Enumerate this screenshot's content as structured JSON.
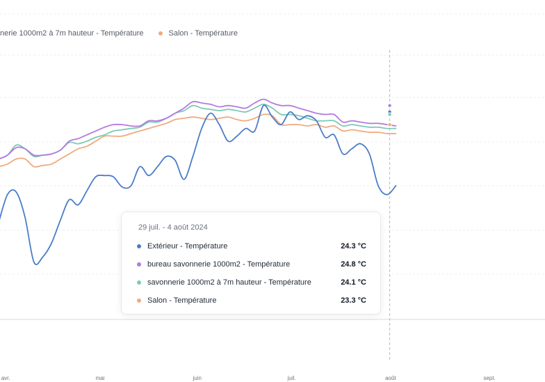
{
  "chart_data": {
    "type": "line",
    "title": "",
    "xlabel": "",
    "ylabel": "",
    "x_tick_labels": [
      "avr.",
      "mai",
      "juin",
      "juil.",
      "août",
      "sept."
    ],
    "ylim": [
      8,
      32
    ],
    "legend": [
      "nerie 1000m2 à 7m hauteur - Température",
      "Salon - Température"
    ],
    "hover_category": "29 juil. - 4 août 2024",
    "series": [
      {
        "name": "Extérieur - Température",
        "color": "#4a7cc9",
        "values": [
          15.6,
          17.8,
          18.0,
          16.0,
          12.5,
          12.9,
          14.0,
          15.8,
          17.4,
          17.0,
          18.1,
          19.2,
          19.3,
          19.2,
          18.4,
          18.5,
          20.0,
          19.3,
          20.0,
          20.8,
          20.5,
          19.0,
          20.8,
          23.0,
          24.2,
          23.3,
          22.0,
          22.4,
          23.0,
          22.8,
          24.8,
          23.9,
          23.3,
          24.3,
          23.7,
          24.0,
          23.6,
          22.3,
          22.5,
          21.0,
          21.4,
          21.8,
          21.0,
          18.5,
          17.8,
          18.5
        ]
      },
      {
        "name": "bureau savonnerie 1000m2 - Température",
        "color": "#b47ae0",
        "values": [
          20.6,
          20.9,
          21.5,
          21.4,
          20.9,
          20.9,
          21.0,
          21.3,
          22.0,
          22.2,
          22.5,
          22.8,
          23.1,
          23.3,
          23.3,
          23.2,
          23.2,
          23.6,
          23.6,
          23.8,
          24.2,
          24.6,
          25.1,
          25.0,
          24.9,
          24.7,
          24.8,
          24.7,
          24.6,
          25.0,
          25.3,
          25.0,
          24.8,
          24.8,
          24.6,
          24.4,
          24.2,
          24.1,
          24.1,
          23.5,
          23.6,
          23.5,
          23.4,
          23.4,
          23.3,
          23.2
        ]
      },
      {
        "name": "savonnerie 1000m2 à 7m hauteur - Température",
        "color": "#7ccab4",
        "values": [
          20.6,
          20.9,
          21.7,
          21.4,
          20.8,
          20.9,
          21.0,
          21.3,
          21.9,
          21.8,
          22.0,
          22.3,
          22.5,
          22.8,
          22.9,
          23.0,
          23.1,
          23.5,
          23.5,
          23.8,
          24.2,
          24.4,
          24.8,
          24.6,
          24.5,
          24.4,
          24.5,
          24.4,
          24.3,
          24.6,
          24.9,
          24.6,
          24.1,
          24.1,
          24.0,
          23.8,
          23.6,
          23.6,
          23.6,
          23.2,
          23.3,
          23.2,
          23.1,
          23.1,
          23.0,
          23.0
        ]
      },
      {
        "name": "Salon - Température",
        "color": "#eeaa80",
        "values": [
          20.0,
          20.2,
          20.6,
          20.6,
          20.0,
          20.1,
          20.2,
          20.6,
          21.0,
          21.4,
          21.6,
          22.0,
          22.4,
          22.4,
          22.4,
          22.6,
          22.8,
          23.0,
          23.2,
          23.4,
          23.7,
          23.8,
          23.9,
          23.8,
          23.7,
          23.8,
          23.9,
          23.7,
          23.6,
          23.8,
          24.1,
          24.0,
          23.3,
          23.3,
          23.3,
          23.2,
          23.3,
          23.1,
          23.2,
          22.8,
          22.9,
          22.8,
          22.7,
          22.7,
          22.6,
          22.6
        ]
      }
    ]
  },
  "tooltip": {
    "title": "29 juil. - 4 août 2024",
    "rows": [
      {
        "label": "Extérieur - Température",
        "value": "24.3 °C",
        "color": "#4a7cc9"
      },
      {
        "label": "bureau savonnerie 1000m2 - Température",
        "value": "24.8 °C",
        "color": "#b47ae0"
      },
      {
        "label": "savonnerie 1000m2 à 7m hauteur - Température",
        "value": "24.1 °C",
        "color": "#7ccab4"
      },
      {
        "label": "Salon - Température",
        "value": "23.3 °C",
        "color": "#eeaa80"
      }
    ]
  },
  "legend": {
    "items": [
      {
        "label": "nerie 1000m2 à 7m hauteur - Température",
        "color": "#7ccab4"
      },
      {
        "label": "Salon - Température",
        "color": "#eeaa80"
      }
    ]
  }
}
